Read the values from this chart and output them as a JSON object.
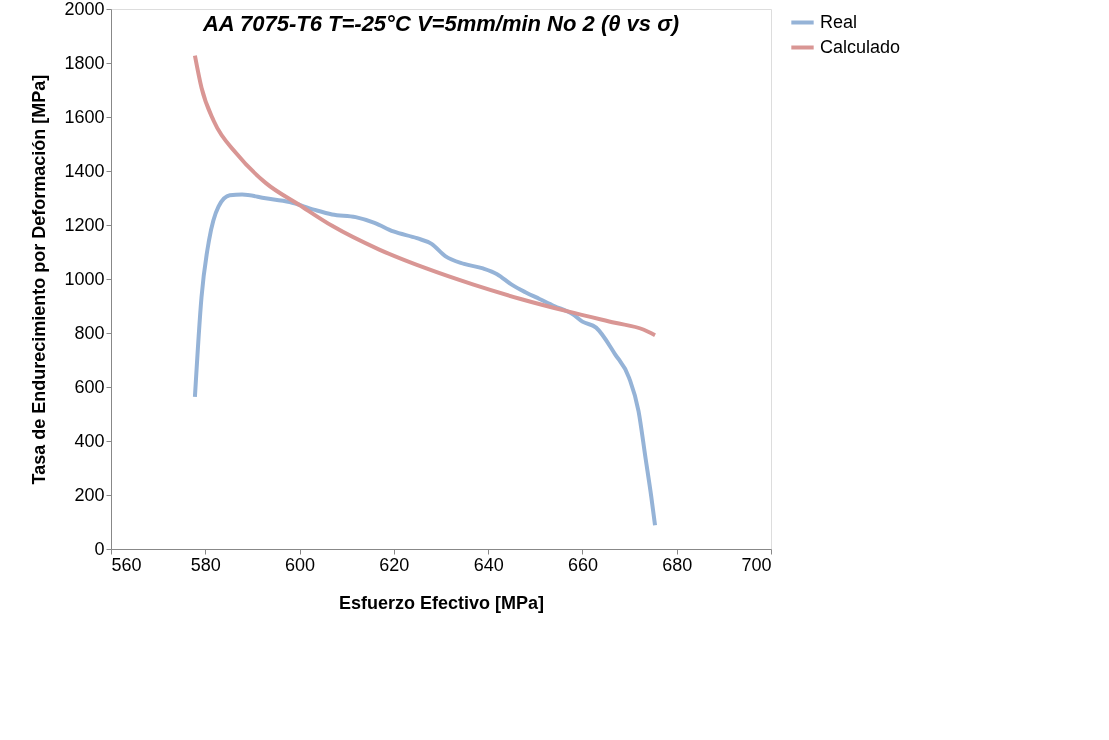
{
  "chart_data": {
    "type": "line",
    "title": "AA 7075-T6  T=-25°C  V=5mm/min  No 2  (θ vs σ)",
    "xlabel": "Esfuerzo Efectivo [MPa]",
    "ylabel": "Tasa de Endurecimiento por Deformación [MPa]",
    "xlim": [
      560,
      700
    ],
    "xticks": [
      560,
      580,
      600,
      620,
      640,
      660,
      680,
      700
    ],
    "ylim": [
      0,
      2000
    ],
    "yticks": [
      0,
      200,
      400,
      600,
      800,
      1000,
      1200,
      1400,
      1600,
      1800,
      2000
    ],
    "grid": false,
    "legend": "right",
    "marker": "none",
    "line_style": "solid",
    "series": [
      {
        "name": "Real",
        "color": "#95b3d7",
        "x": [
          577.8,
          579.2,
          580.8,
          582.8,
          585.2,
          587.8,
          592.8,
          597.9,
          603,
          606.9,
          611.9,
          615.9,
          619.9,
          624.9,
          628,
          630.9,
          634.9,
          638.9,
          641.9,
          645,
          647.9,
          650.9,
          654,
          657.9,
          660,
          662.9,
          666.9,
          669.9,
          671.9,
          673.4,
          674.6,
          675.4
        ],
        "values": [
          563,
          933,
          1144,
          1268,
          1310,
          1313,
          1299,
          1285,
          1257,
          1239,
          1229,
          1208,
          1176,
          1151,
          1130,
          1085,
          1056,
          1039,
          1018,
          979,
          951,
          926,
          900,
          870,
          842,
          820,
          722,
          634,
          511,
          335,
          194,
          88
        ]
      },
      {
        "name": "Calculado",
        "color": "#d99694",
        "x": [
          577.8,
          579.2,
          581.8,
          586.8,
          592.8,
          599.9,
          606.9,
          616.9,
          626.9,
          636.9,
          646.9,
          656.9,
          666.9,
          672.9,
          675.4
        ],
        "values": [
          1827,
          1708,
          1585,
          1461,
          1356,
          1275,
          1197,
          1109,
          1039,
          979,
          926,
          880,
          838,
          813,
          792
        ]
      }
    ]
  }
}
